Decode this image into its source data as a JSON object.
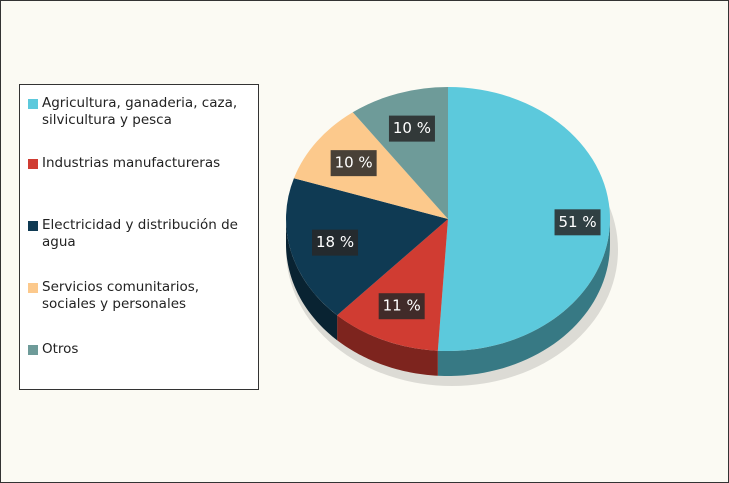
{
  "chart_data": {
    "type": "pie",
    "categories": [
      "Agricultura, ganaderia, caza, silvicultura y pesca",
      "Industrias manufactureras",
      "Electricidad y distribución de agua",
      "Servicios comunitarios, sociales y personales",
      "Otros"
    ],
    "values": [
      51,
      11,
      18,
      10,
      10
    ],
    "value_labels": [
      "51 %",
      "11 %",
      "18 %",
      "10 %",
      "10 %"
    ],
    "colors": [
      "#5cc9dc",
      "#d03c32",
      "#0f3a53",
      "#fcc98c",
      "#6e9b99"
    ],
    "legend": "left"
  }
}
